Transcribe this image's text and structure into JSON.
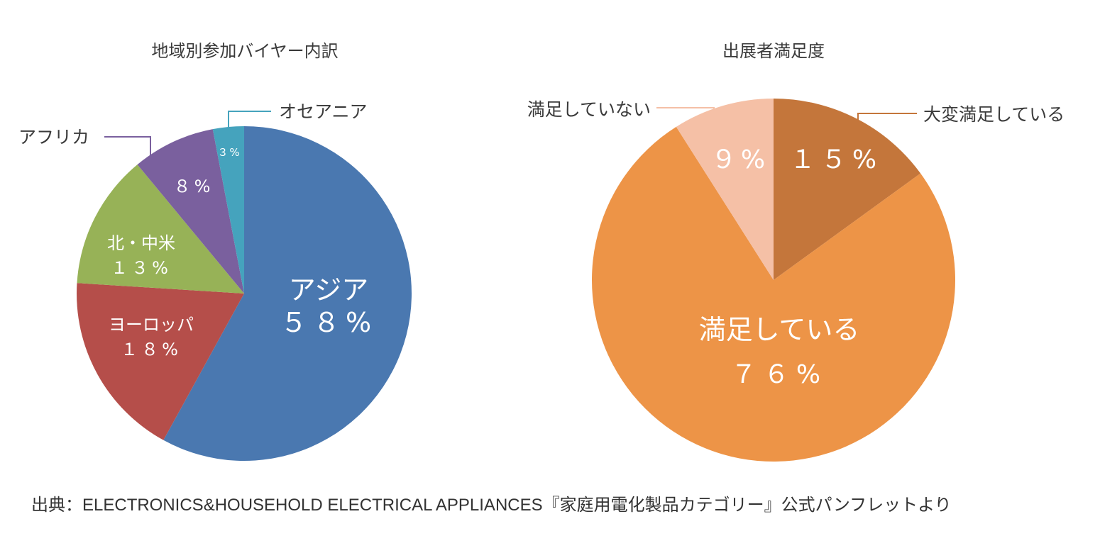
{
  "chart_data": [
    {
      "type": "pie",
      "title": "地域別参加バイヤー内訳",
      "slices": [
        {
          "label": "アジア",
          "value": 58,
          "value_label": "５８%",
          "color": "#4a78b0"
        },
        {
          "label": "ヨーロッパ",
          "value": 18,
          "value_label": "１８%",
          "color": "#b54e4a"
        },
        {
          "label": "北・中米",
          "value": 13,
          "value_label": "１３%",
          "color": "#97b257"
        },
        {
          "label": "アフリカ",
          "value": 8,
          "value_label": "８%",
          "color": "#7a609e"
        },
        {
          "label": "オセアニア",
          "value": 3,
          "value_label": "３%",
          "color": "#45a3bd"
        }
      ]
    },
    {
      "type": "pie",
      "title": "出展者満足度",
      "slices": [
        {
          "label": "大変満足している",
          "value": 15,
          "value_label": "１５%",
          "color": "#c4763b"
        },
        {
          "label": "満足している",
          "value": 76,
          "value_label": "７６%",
          "color": "#ed9447"
        },
        {
          "label": "満足していない",
          "value": 9,
          "value_label": "９%",
          "color": "#f5c0a6"
        }
      ]
    }
  ],
  "source": "出典：ELECTRONICS&HOUSEHOLD ELECTRICAL APPLIANCES『家庭用電化製品カテゴリー』公式パンフレットより"
}
